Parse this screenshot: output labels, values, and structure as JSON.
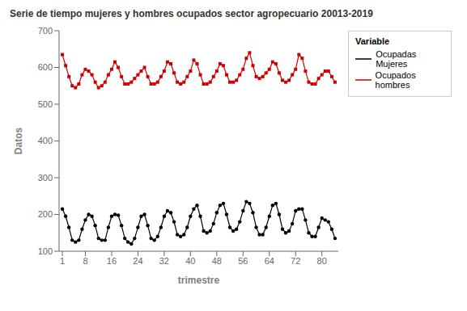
{
  "chart_data": {
    "type": "line",
    "title": "Serie de tiempo mujeres y hombres ocupados sector agropecuario 20013-2019",
    "x_label": "trimestre",
    "y_label": "Datos",
    "legend_title": "Variable",
    "legend": "right",
    "grid": false,
    "xlim": [
      0,
      85
    ],
    "xticks": [
      1,
      8,
      16,
      24,
      32,
      40,
      48,
      56,
      64,
      72,
      80
    ],
    "ylim": [
      100,
      700
    ],
    "yticks": [
      100,
      200,
      300,
      400,
      500,
      600,
      700
    ],
    "x": [
      1,
      2,
      3,
      4,
      5,
      6,
      7,
      8,
      9,
      10,
      11,
      12,
      13,
      14,
      15,
      16,
      17,
      18,
      19,
      20,
      21,
      22,
      23,
      24,
      25,
      26,
      27,
      28,
      29,
      30,
      31,
      32,
      33,
      34,
      35,
      36,
      37,
      38,
      39,
      40,
      41,
      42,
      43,
      44,
      45,
      46,
      47,
      48,
      49,
      50,
      51,
      52,
      53,
      54,
      55,
      56,
      57,
      58,
      59,
      60,
      61,
      62,
      63,
      64,
      65,
      66,
      67,
      68,
      69,
      70,
      71,
      72,
      73,
      74,
      75,
      76,
      77,
      78,
      79,
      80,
      81,
      82,
      83,
      84
    ],
    "series": [
      {
        "name": "Ocupadas Mujeres",
        "color": "#000000",
        "marker": "circle",
        "line_style": "solid",
        "values": [
          215,
          195,
          165,
          130,
          125,
          130,
          160,
          185,
          200,
          195,
          170,
          135,
          130,
          130,
          165,
          195,
          200,
          198,
          170,
          135,
          125,
          120,
          135,
          165,
          195,
          200,
          170,
          135,
          130,
          140,
          165,
          195,
          210,
          205,
          180,
          145,
          140,
          145,
          165,
          195,
          215,
          225,
          195,
          155,
          150,
          155,
          175,
          205,
          225,
          230,
          200,
          165,
          155,
          160,
          180,
          210,
          235,
          230,
          205,
          165,
          145,
          145,
          165,
          195,
          225,
          230,
          200,
          160,
          150,
          155,
          175,
          210,
          215,
          215,
          185,
          150,
          140,
          140,
          165,
          190,
          185,
          180,
          160,
          135
        ]
      },
      {
        "name": "Ocupados hombres",
        "color": "#cc0000",
        "marker": "square",
        "line_style": "solid",
        "values": [
          635,
          605,
          575,
          550,
          545,
          555,
          580,
          595,
          590,
          580,
          560,
          545,
          550,
          560,
          580,
          595,
          615,
          600,
          575,
          555,
          555,
          560,
          570,
          580,
          590,
          600,
          575,
          555,
          555,
          560,
          575,
          590,
          615,
          610,
          585,
          560,
          555,
          560,
          575,
          590,
          620,
          610,
          580,
          555,
          555,
          560,
          575,
          590,
          610,
          605,
          580,
          560,
          560,
          565,
          580,
          595,
          625,
          640,
          605,
          575,
          570,
          575,
          585,
          595,
          615,
          610,
          585,
          565,
          560,
          565,
          580,
          595,
          635,
          625,
          590,
          560,
          555,
          555,
          570,
          580,
          590,
          590,
          575,
          560
        ]
      }
    ]
  }
}
